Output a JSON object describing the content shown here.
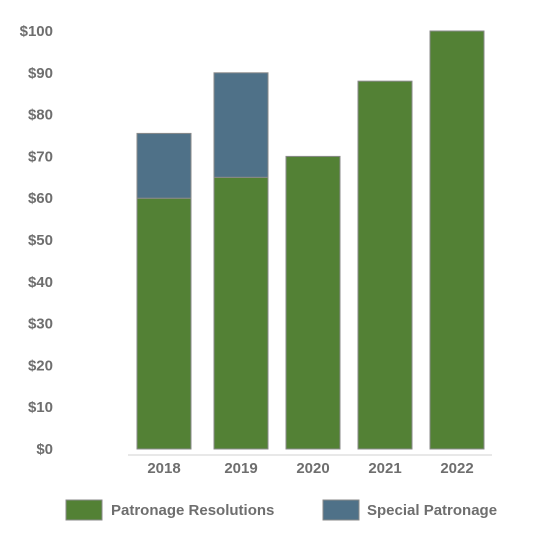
{
  "chart_data": {
    "type": "bar",
    "stacked": true,
    "categories": [
      "2018",
      "2019",
      "2020",
      "2021",
      "2022"
    ],
    "series": [
      {
        "name": "Patronage Resolutions",
        "color": "#538135",
        "values": [
          60,
          65,
          70,
          88,
          100
        ]
      },
      {
        "name": "Special Patronage",
        "color": "#4f7188",
        "values": [
          15.5,
          25,
          0,
          0,
          0
        ]
      }
    ],
    "y_ticks": [
      "$0",
      "$10",
      "$20",
      "$30",
      "$40",
      "$50",
      "$60",
      "$70",
      "$80",
      "$90",
      "$100"
    ],
    "ylim": [
      0,
      100
    ],
    "grid": false,
    "legend_position": "bottom"
  }
}
